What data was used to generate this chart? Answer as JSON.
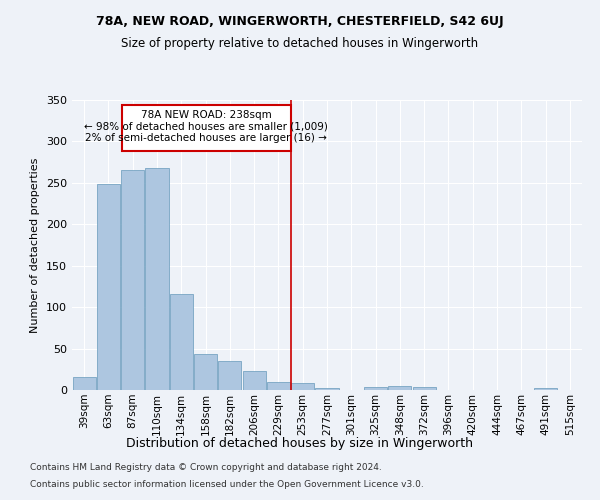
{
  "title": "78A, NEW ROAD, WINGERWORTH, CHESTERFIELD, S42 6UJ",
  "subtitle": "Size of property relative to detached houses in Wingerworth",
  "xlabel": "Distribution of detached houses by size in Wingerworth",
  "ylabel": "Number of detached properties",
  "footer_line1": "Contains HM Land Registry data © Crown copyright and database right 2024.",
  "footer_line2": "Contains public sector information licensed under the Open Government Licence v3.0.",
  "annotation_line1": "78A NEW ROAD: 238sqm",
  "annotation_line2": "← 98% of detached houses are smaller (1,009)",
  "annotation_line3": "2% of semi-detached houses are larger (16) →",
  "bar_color": "#adc6e0",
  "bar_edge_color": "#6699bb",
  "vline_color": "#cc0000",
  "categories": [
    "39sqm",
    "63sqm",
    "87sqm",
    "110sqm",
    "134sqm",
    "158sqm",
    "182sqm",
    "206sqm",
    "229sqm",
    "253sqm",
    "277sqm",
    "301sqm",
    "325sqm",
    "348sqm",
    "372sqm",
    "396sqm",
    "420sqm",
    "444sqm",
    "467sqm",
    "491sqm",
    "515sqm"
  ],
  "values": [
    16,
    249,
    265,
    268,
    116,
    44,
    35,
    23,
    10,
    8,
    3,
    0,
    4,
    5,
    4,
    0,
    0,
    0,
    0,
    3,
    0
  ],
  "ylim": [
    0,
    350
  ],
  "yticks": [
    0,
    50,
    100,
    150,
    200,
    250,
    300,
    350
  ],
  "background_color": "#eef2f8",
  "grid_color": "#ffffff",
  "vline_position": 8.5
}
